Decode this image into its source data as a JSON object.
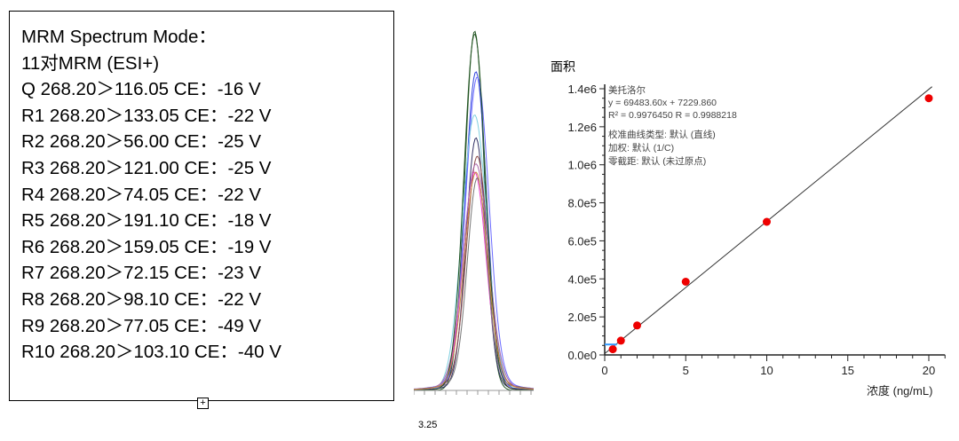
{
  "info_box": {
    "lines": [
      "MRM Spectrum Mode：",
      "11对MRM (ESI+)",
      "Q 268.20＞116.05 CE：-16 V",
      "R1 268.20＞133.05 CE：-22 V",
      "R2 268.20＞56.00 CE：-25 V",
      "R3 268.20＞121.00 CE：-25 V",
      "R4 268.20＞74.05 CE：-22 V",
      "R5 268.20＞191.10 CE：-18 V",
      "R6 268.20＞159.05 CE：-19 V",
      "R7 268.20＞72.15 CE：-23 V",
      "R8 268.20＞98.10 CE：-22 V",
      "R9 268.20＞77.05 CE：-49 V",
      "R10 268.20＞103.10 CE：-40 V"
    ]
  },
  "chromatogram": {
    "x_tick_label": "3.25",
    "colors": [
      "#2a5a2a",
      "#3344dd",
      "#6a6aff",
      "#7fd0e0",
      "#333366",
      "#8b4a4a",
      "#ee44cc",
      "#aa66aa",
      "#777777",
      "#225522",
      "#cc8844"
    ]
  },
  "chart_data": {
    "type": "scatter",
    "ylabel": "面积",
    "xlabel": "浓度 (ng/mL)",
    "xlim": [
      0,
      21
    ],
    "ylim": [
      0,
      1400000
    ],
    "x_ticks": [
      0,
      5,
      10,
      15,
      20
    ],
    "x_tick_labels": [
      "0",
      "5",
      "10",
      "15",
      "20"
    ],
    "y_ticks": [
      0,
      200000,
      400000,
      600000,
      800000,
      1000000,
      1200000,
      1400000
    ],
    "y_tick_labels": [
      "0.0e0",
      "2.0e5",
      "4.0e5",
      "6.0e5",
      "8.0e5",
      "1.0e6",
      "1.2e6",
      "1.4e6"
    ],
    "points": [
      {
        "x": 0.5,
        "y": 30000
      },
      {
        "x": 1,
        "y": 75000
      },
      {
        "x": 2,
        "y": 155000
      },
      {
        "x": 5,
        "y": 385000
      },
      {
        "x": 10,
        "y": 700000
      },
      {
        "x": 20,
        "y": 1350000
      }
    ],
    "fit": {
      "slope": 69483.6,
      "intercept": 7229.86
    },
    "annotations": [
      "美托洛尔",
      "y = 69483.60x + 7229.860",
      "R² = 0.9976450    R = 0.9988218",
      "校准曲线类型: 默认 (直线)",
      "加权: 默认 (1/C)",
      "零截距: 默认 (未过原点)"
    ],
    "point_color": "#ee0000",
    "line_color": "#333333"
  }
}
